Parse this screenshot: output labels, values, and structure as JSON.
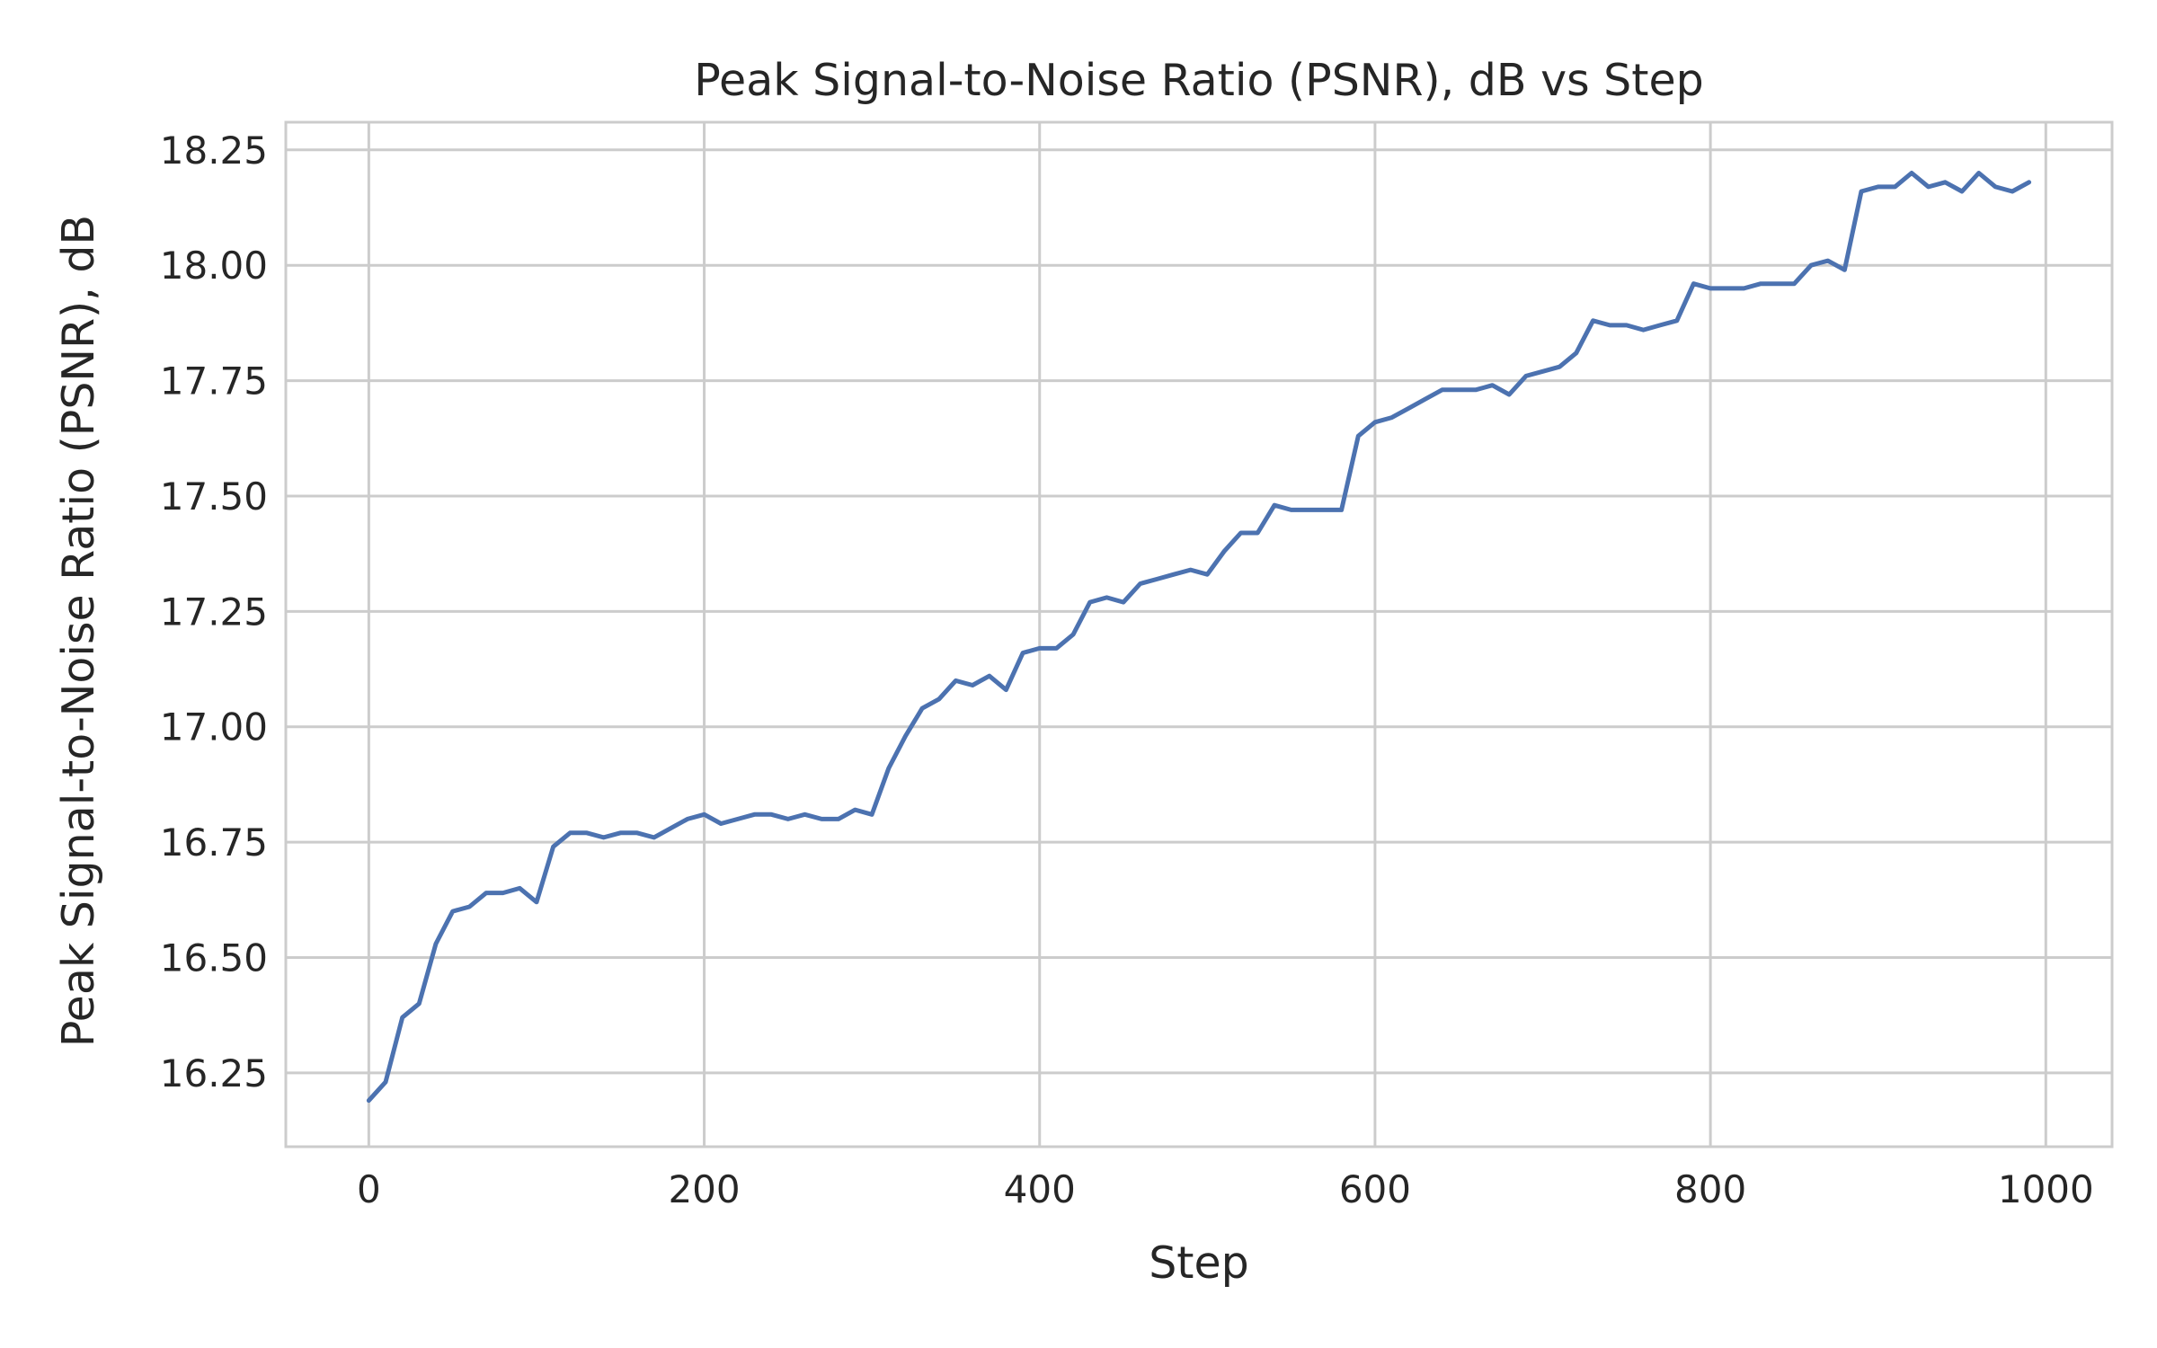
{
  "chart_data": {
    "type": "line",
    "title": "Peak Signal-to-Noise Ratio (PSNR), dB vs Step",
    "xlabel": "Step",
    "ylabel": "Peak Signal-to-Noise Ratio (PSNR), dB",
    "xlim": [
      -49.5,
      1039.5
    ],
    "ylim": [
      16.09,
      18.31
    ],
    "x_ticks": [
      0,
      200,
      400,
      600,
      800,
      1000
    ],
    "x_tick_labels": [
      "0",
      "200",
      "400",
      "600",
      "800",
      "1000"
    ],
    "y_ticks": [
      16.25,
      16.5,
      16.75,
      17.0,
      17.25,
      17.5,
      17.75,
      18.0,
      18.25
    ],
    "y_tick_labels": [
      "16.25",
      "16.50",
      "16.75",
      "17.00",
      "17.25",
      "17.50",
      "17.75",
      "18.00",
      "18.25"
    ],
    "grid": true,
    "series": [
      {
        "color": "#4c72b0",
        "x": [
          0,
          10,
          20,
          30,
          40,
          50,
          60,
          70,
          80,
          90,
          100,
          110,
          120,
          130,
          140,
          150,
          160,
          170,
          180,
          190,
          200,
          210,
          220,
          230,
          240,
          250,
          260,
          270,
          280,
          290,
          300,
          310,
          320,
          330,
          340,
          350,
          360,
          370,
          380,
          390,
          400,
          410,
          420,
          430,
          440,
          450,
          460,
          470,
          480,
          490,
          500,
          510,
          520,
          530,
          540,
          550,
          560,
          570,
          580,
          590,
          600,
          610,
          620,
          630,
          640,
          650,
          660,
          670,
          680,
          690,
          700,
          710,
          720,
          730,
          740,
          750,
          760,
          770,
          780,
          790,
          800,
          810,
          820,
          830,
          840,
          850,
          860,
          870,
          880,
          890,
          900,
          910,
          920,
          930,
          940,
          950,
          960,
          970,
          980,
          990
        ],
        "values": [
          16.19,
          16.23,
          16.37,
          16.4,
          16.53,
          16.6,
          16.61,
          16.64,
          16.64,
          16.65,
          16.62,
          16.74,
          16.77,
          16.77,
          16.76,
          16.77,
          16.77,
          16.76,
          16.78,
          16.8,
          16.81,
          16.79,
          16.8,
          16.81,
          16.81,
          16.8,
          16.81,
          16.8,
          16.8,
          16.82,
          16.81,
          16.91,
          16.98,
          17.04,
          17.06,
          17.1,
          17.09,
          17.11,
          17.08,
          17.16,
          17.17,
          17.17,
          17.2,
          17.27,
          17.28,
          17.27,
          17.31,
          17.32,
          17.33,
          17.34,
          17.33,
          17.38,
          17.42,
          17.42,
          17.48,
          17.47,
          17.47,
          17.47,
          17.47,
          17.63,
          17.66,
          17.67,
          17.69,
          17.71,
          17.73,
          17.73,
          17.73,
          17.74,
          17.72,
          17.76,
          17.77,
          17.78,
          17.81,
          17.88,
          17.87,
          17.87,
          17.86,
          17.87,
          17.88,
          17.96,
          17.95,
          17.95,
          17.95,
          17.96,
          17.96,
          17.96,
          18.0,
          18.01,
          17.99,
          18.16,
          18.17,
          18.17,
          18.2,
          18.17,
          18.18,
          18.16,
          18.2,
          18.17,
          18.16,
          18.18
        ]
      }
    ]
  }
}
